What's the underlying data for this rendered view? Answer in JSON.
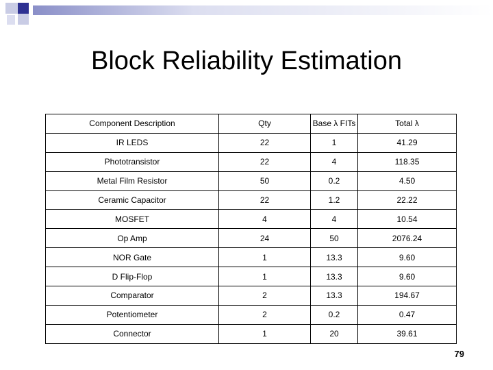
{
  "slide": {
    "title": "Block Reliability Estimation",
    "page_number": "79",
    "accent_color": "#2e3192",
    "accent_light": "#c9cce5"
  },
  "table": {
    "headers": [
      "Component Description",
      "Qty",
      "Base λ FITs",
      "Total λ"
    ],
    "rows": [
      [
        "IR LEDS",
        "22",
        "1",
        "41.29"
      ],
      [
        "Phototransistor",
        "22",
        "4",
        "118.35"
      ],
      [
        "Metal Film Resistor",
        "50",
        "0.2",
        "4.50"
      ],
      [
        "Ceramic Capacitor",
        "22",
        "1.2",
        "22.22"
      ],
      [
        "MOSFET",
        "4",
        "4",
        "10.54"
      ],
      [
        "Op Amp",
        "24",
        "50",
        "2076.24"
      ],
      [
        "NOR Gate",
        "1",
        "13.3",
        "9.60"
      ],
      [
        "D Flip-Flop",
        "1",
        "13.3",
        "9.60"
      ],
      [
        "Comparator",
        "2",
        "13.3",
        "194.67"
      ],
      [
        "Potentiometer",
        "2",
        "0.2",
        "0.47"
      ],
      [
        "Connector",
        "1",
        "20",
        "39.61"
      ]
    ]
  }
}
